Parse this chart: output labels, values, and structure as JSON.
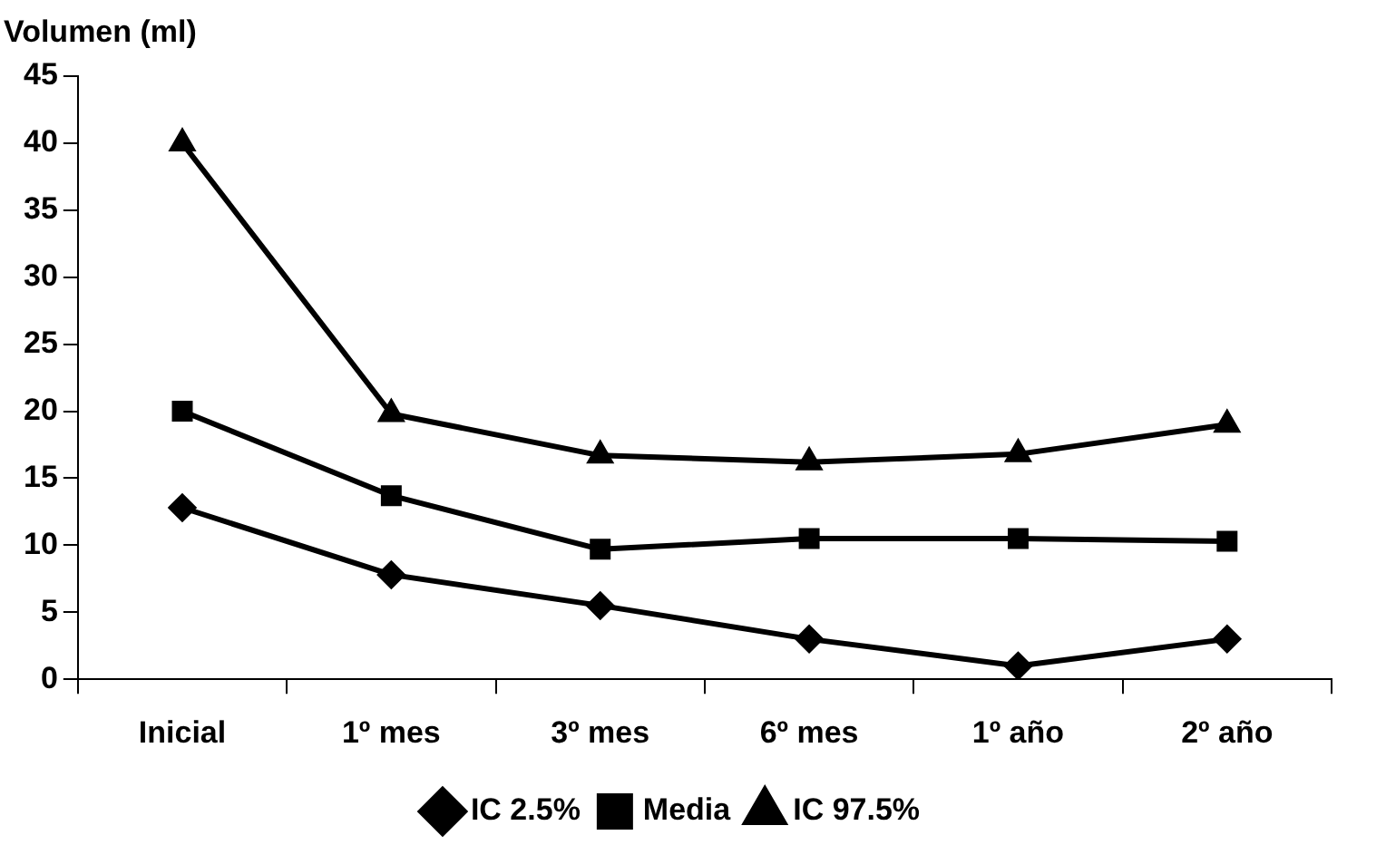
{
  "chart_data": {
    "type": "line",
    "ylabel": "Volumen (ml)",
    "categories": [
      "Inicial",
      "1º mes",
      "3º mes",
      "6º mes",
      "1º año",
      "2º año"
    ],
    "series": [
      {
        "name": "IC 2.5%",
        "color": "#000000",
        "marker": "diamond",
        "values": [
          12.8,
          7.8,
          5.5,
          3,
          1,
          3
        ]
      },
      {
        "name": "Media",
        "color": "#000000",
        "marker": "square",
        "values": [
          20,
          13.7,
          9.7,
          10.5,
          10.5,
          10.3
        ]
      },
      {
        "name": "IC 97.5%",
        "color": "#000000",
        "marker": "triangle",
        "values": [
          40,
          19.8,
          16.7,
          16.2,
          16.8,
          19
        ]
      }
    ],
    "ylim": [
      0,
      45
    ],
    "yticks": [
      0,
      5,
      10,
      15,
      20,
      25,
      30,
      35,
      40,
      45
    ],
    "grid": false,
    "legend": "bottom",
    "line_style": "solid"
  }
}
